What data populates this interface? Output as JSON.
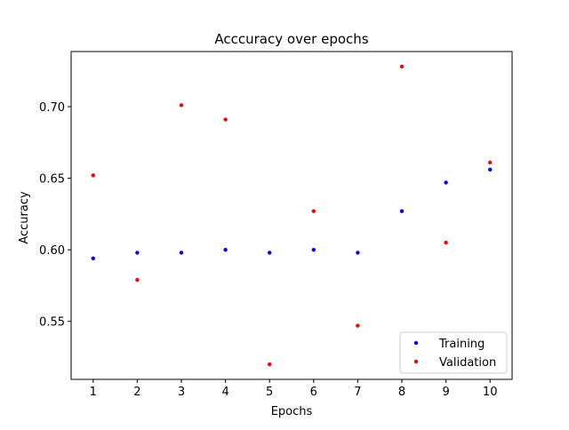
{
  "chart_data": {
    "type": "scatter",
    "title": "Acccuracy over epochs",
    "xlabel": "Epochs",
    "ylabel": "Accuracy",
    "x": [
      1,
      2,
      3,
      4,
      5,
      6,
      7,
      8,
      9,
      10
    ],
    "xlim": [
      0.5,
      10.5
    ],
    "ylim": [
      0.5095,
      0.7385
    ],
    "xticks": [
      "1",
      "2",
      "3",
      "4",
      "5",
      "6",
      "7",
      "8",
      "9",
      "10"
    ],
    "yticks": [
      {
        "value": 0.55,
        "label": "0.55"
      },
      {
        "value": 0.6,
        "label": "0.60"
      },
      {
        "value": 0.65,
        "label": "0.65"
      },
      {
        "value": 0.7,
        "label": "0.70"
      }
    ],
    "grid": false,
    "legend_position": "lower-right",
    "series": [
      {
        "name": "Training",
        "color": "#0000ff",
        "values": [
          0.594,
          0.598,
          0.598,
          0.6,
          0.598,
          0.6,
          0.598,
          0.627,
          0.647,
          0.656
        ]
      },
      {
        "name": "Validation",
        "color": "#ff0000",
        "values": [
          0.652,
          0.579,
          0.701,
          0.691,
          0.52,
          0.627,
          0.547,
          0.728,
          0.605,
          0.661
        ]
      }
    ]
  }
}
